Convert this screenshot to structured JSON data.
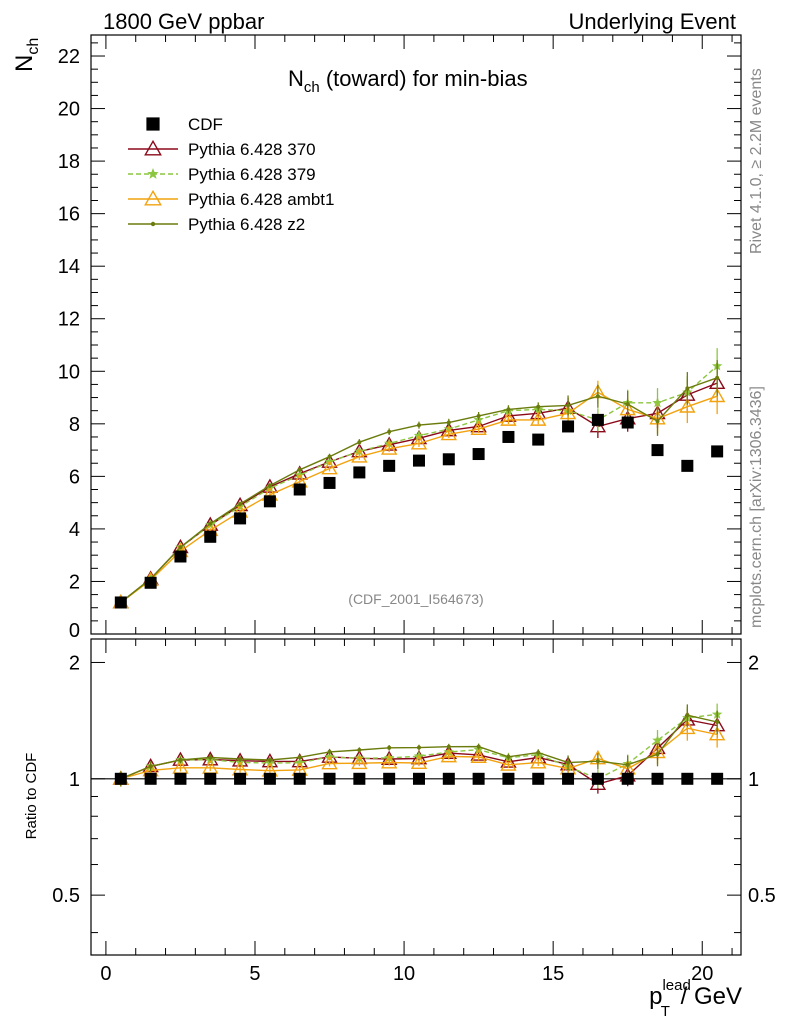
{
  "header": {
    "left": "1800 GeV ppbar",
    "right": "Underlying Event"
  },
  "side_labels": {
    "rivet": "Rivet 4.1.0, ≥ 2.2M events",
    "mcplots": "mcplots.cern.ch [arXiv:1306.3436]"
  },
  "watermark": "(CDF_2001_I564673)",
  "chart_data": {
    "type": "scatter",
    "title_main": "N",
    "title_sub": "ch",
    "title_rest": " (toward) for min-bias",
    "ylabel_main": "N",
    "ylabel_sub": "ch",
    "xlabel_main": "p",
    "xlabel_sub": "T",
    "xlabel_sup": "lead",
    "xlabel_rest": " / GeV",
    "ratio_ylabel": "Ratio to CDF",
    "xlim": [
      -0.5,
      21.3
    ],
    "ylim": [
      0,
      22.8
    ],
    "ratio_ylim": [
      0.35,
      2.3
    ],
    "x_ticks": [
      "0",
      "5",
      "10",
      "15",
      "20"
    ],
    "y_ticks": [
      "0",
      "2",
      "4",
      "6",
      "8",
      "10",
      "12",
      "14",
      "16",
      "18",
      "20",
      "22"
    ],
    "ratio_ticks": [
      "0.5",
      "1",
      "2"
    ],
    "x": [
      0.5,
      1.5,
      2.5,
      3.5,
      4.5,
      5.5,
      6.5,
      7.5,
      8.5,
      9.5,
      10.5,
      11.5,
      12.5,
      13.5,
      14.5,
      15.5,
      16.5,
      17.5,
      18.5,
      19.5,
      20.5
    ],
    "series": [
      {
        "name": "CDF",
        "color": "#000000",
        "marker": "square",
        "values": [
          1.2,
          1.95,
          2.95,
          3.7,
          4.4,
          5.05,
          5.5,
          5.75,
          6.15,
          6.4,
          6.6,
          6.65,
          6.85,
          7.5,
          7.4,
          7.9,
          8.15,
          8.05,
          7.0,
          6.4,
          6.95
        ]
      },
      {
        "name": "Pythia 6.428 370",
        "color": "#8b0a1a",
        "marker": "triangle-open",
        "dash": "",
        "values": [
          1.2,
          2.1,
          3.3,
          4.15,
          4.9,
          5.6,
          6.1,
          6.55,
          6.95,
          7.2,
          7.45,
          7.75,
          7.9,
          8.3,
          8.4,
          8.6,
          7.9,
          8.2,
          8.4,
          9.1,
          9.55
        ]
      },
      {
        "name": "Pythia 6.428 379",
        "color": "#8cc63f",
        "marker": "star",
        "dash": "5,3",
        "values": [
          1.2,
          2.1,
          3.3,
          4.15,
          4.85,
          5.55,
          6.05,
          6.55,
          6.95,
          7.25,
          7.55,
          7.8,
          8.15,
          8.5,
          8.55,
          8.5,
          8.15,
          8.8,
          8.8,
          9.2,
          10.2
        ]
      },
      {
        "name": "Pythia 6.428 ambt1",
        "color": "#f2a20e",
        "marker": "triangle-open",
        "dash": "",
        "values": [
          1.2,
          2.05,
          3.15,
          3.95,
          4.65,
          5.3,
          5.8,
          6.3,
          6.75,
          7.05,
          7.25,
          7.6,
          7.8,
          8.15,
          8.15,
          8.4,
          9.2,
          8.55,
          8.2,
          8.65,
          9.05
        ]
      },
      {
        "name": "Pythia 6.428 z2",
        "color": "#6b7c0c",
        "marker": "dot",
        "dash": "",
        "values": [
          1.2,
          2.1,
          3.3,
          4.2,
          4.95,
          5.65,
          6.25,
          6.75,
          7.3,
          7.7,
          7.95,
          8.05,
          8.3,
          8.55,
          8.65,
          8.7,
          9.05,
          8.75,
          8.1,
          9.35,
          9.75
        ]
      }
    ]
  }
}
